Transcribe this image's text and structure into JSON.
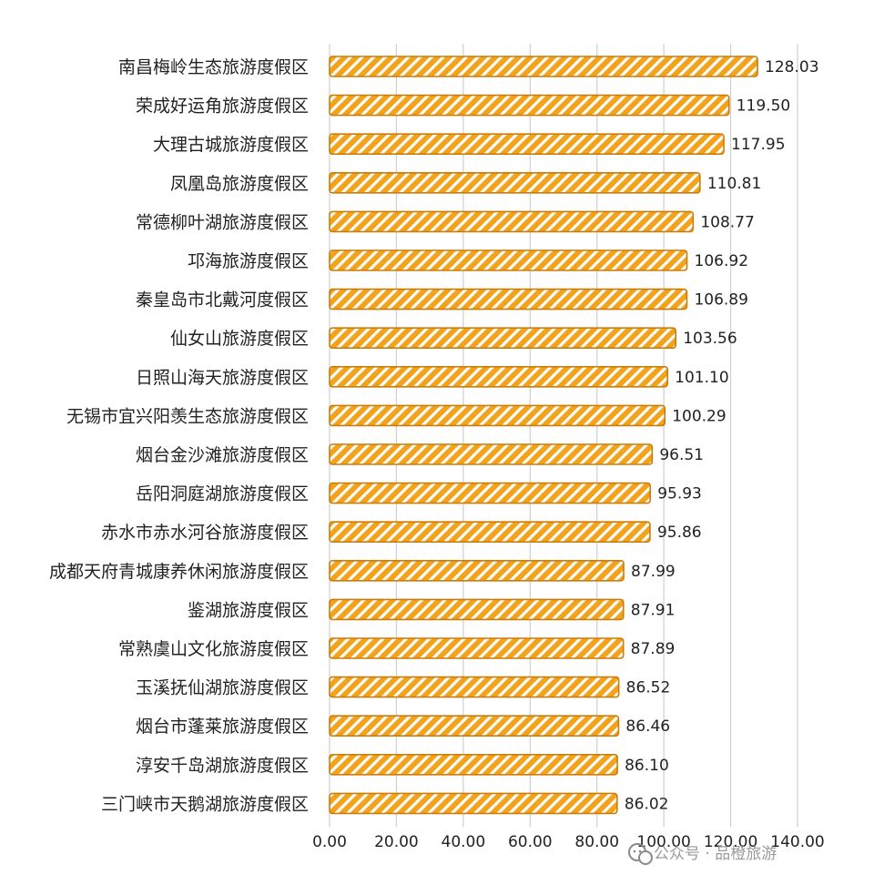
{
  "chart_data": {
    "type": "bar",
    "orientation": "horizontal",
    "categories": [
      "南昌梅岭生态旅游度假区",
      "荣成好运角旅游度假区",
      "大理古城旅游度假区",
      "凤凰岛旅游度假区",
      "常德柳叶湖旅游度假区",
      "邛海旅游度假区",
      "秦皇岛市北戴河度假区",
      "仙女山旅游度假区",
      "日照山海天旅游度假区",
      "无锡市宜兴阳羡生态旅游度假区",
      "烟台金沙滩旅游度假区",
      "岳阳洞庭湖旅游度假区",
      "赤水市赤水河谷旅游度假区",
      "成都天府青城康养休闲旅游度假区",
      "鉴湖旅游度假区",
      "常熟虞山文化旅游度假区",
      "玉溪抚仙湖旅游度假区",
      "烟台市蓬莱旅游度假区",
      "淳安千岛湖旅游度假区",
      "三门峡市天鹅湖旅游度假区"
    ],
    "values": [
      128.03,
      119.5,
      117.95,
      110.81,
      108.77,
      106.92,
      106.89,
      103.56,
      101.1,
      100.29,
      96.51,
      95.93,
      95.86,
      87.99,
      87.91,
      87.89,
      86.52,
      86.46,
      86.1,
      86.02
    ],
    "value_labels": [
      "128.03",
      "119.50",
      "117.95",
      "110.81",
      "108.77",
      "106.92",
      "106.89",
      "103.56",
      "101.10",
      "100.29",
      "96.51",
      "95.93",
      "95.86",
      "87.99",
      "87.91",
      "87.89",
      "86.52",
      "86.46",
      "86.10",
      "86.02"
    ],
    "xlim": [
      0,
      140
    ],
    "x_ticks": [
      "0.00",
      "20.00",
      "40.00",
      "60.00",
      "80.00",
      "100.00",
      "120.00",
      "140.00"
    ],
    "title": "",
    "xlabel": "",
    "ylabel": "",
    "grid": "vertical",
    "bar_style": "diagonal hatch",
    "colors": {
      "bar_fill": "#f2a31b",
      "bar_edge": "#c97d0a",
      "hatch": "#ffffff",
      "grid": "#cfcfcf",
      "text": "#222222"
    }
  },
  "watermark": {
    "icon": "wechat-icon",
    "text": "公众号 · 品橙旅游"
  }
}
